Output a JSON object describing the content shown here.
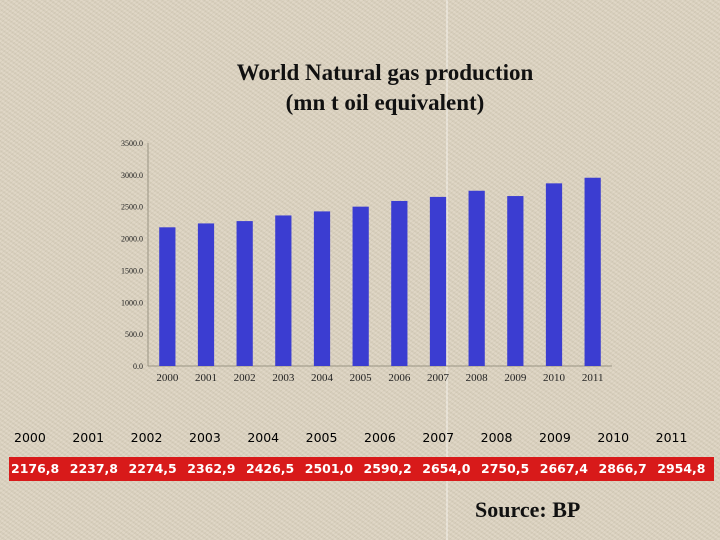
{
  "title_line1": "World   Natural gas production",
  "title_line2": "(mn t  oil equivalent)",
  "source": "Source: BP",
  "colors": {
    "bar": "#3b3dd1",
    "value_strip": "#d81a1a"
  },
  "chart_data": {
    "type": "bar",
    "categories": [
      "2000",
      "2001",
      "2002",
      "2003",
      "2004",
      "2005",
      "2006",
      "2007",
      "2008",
      "2009",
      "2010",
      "2011"
    ],
    "values": [
      2176.8,
      2237.8,
      2274.5,
      2362.9,
      2426.5,
      2501.0,
      2590.2,
      2654.0,
      2750.5,
      2667.4,
      2866.7,
      2954.8
    ],
    "yticks": [
      "0.0",
      "500.0",
      "1000.0",
      "1500.0",
      "2000.0",
      "2500.0",
      "3000.0",
      "3500.0"
    ],
    "ylim": [
      0,
      3500
    ],
    "grid": false,
    "legend": "none"
  },
  "table": {
    "years": [
      "2000",
      "2001",
      "2002",
      "2003",
      "2004",
      "2005",
      "2006",
      "2007",
      "2008",
      "2009",
      "2010",
      "2011"
    ],
    "values": [
      "2176,8",
      "2237,8",
      "2274,5",
      "2362,9",
      "2426,5",
      "2501,0",
      "2590,2",
      "2654,0",
      "2750,5",
      "2667,4",
      "2866,7",
      "2954,8"
    ]
  }
}
